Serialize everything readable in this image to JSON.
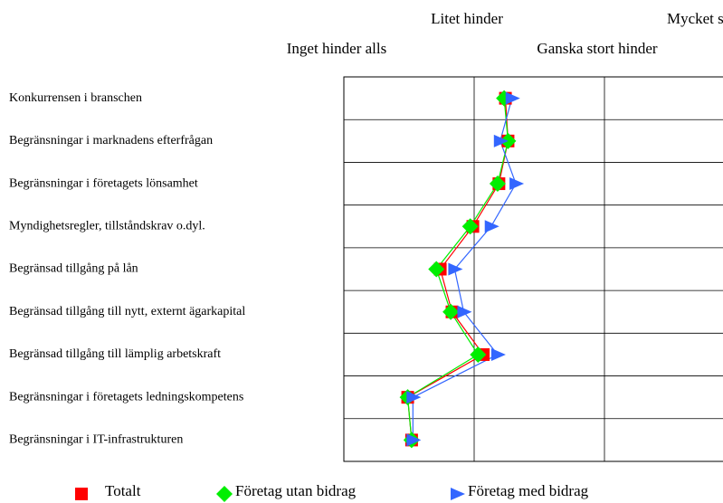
{
  "chart_data": {
    "type": "line",
    "orientation": "horizontal",
    "categories": [
      "Konkurrensen i branschen",
      "Begränsningar i marknadens efterfrågan",
      "Begränsningar i företagets lönsamhet",
      "Myndighetsregler, tillståndskrav o.dyl.",
      "Begränsad tillgång på lån",
      "Begränsad tillgång till nytt, externt ägarkapital",
      "Begränsad tillgång till lämplig arbetskraft",
      "Begränsningar i företagets ledningskompetens",
      "Begränsningar i IT-infrastrukturen"
    ],
    "series": [
      {
        "name": "Totalt",
        "color": "#ff0000",
        "marker": "square",
        "values": [
          2.24,
          2.26,
          2.19,
          1.99,
          1.74,
          1.83,
          2.07,
          1.49,
          1.52
        ]
      },
      {
        "name": "Företag utan bidrag",
        "color": "#00ee00",
        "marker": "diamond",
        "values": [
          2.23,
          2.26,
          2.18,
          1.97,
          1.71,
          1.82,
          2.03,
          1.49,
          1.52
        ]
      },
      {
        "name": "Företag med bidrag",
        "color": "#3366ff",
        "marker": "triangle",
        "values": [
          2.29,
          2.2,
          2.32,
          2.13,
          1.85,
          1.92,
          2.18,
          1.53,
          1.53
        ]
      }
    ],
    "xlim": [
      1,
      4
    ],
    "xticks": [
      {
        "value": 1,
        "label": "Inget hinder alls"
      },
      {
        "value": 2,
        "label": "Litet hinder"
      },
      {
        "value": 3,
        "label": "Ganska stort hinder"
      },
      {
        "value": 4,
        "label": "Mycket stort hinder"
      }
    ],
    "grid": true,
    "legend": "bottom"
  }
}
